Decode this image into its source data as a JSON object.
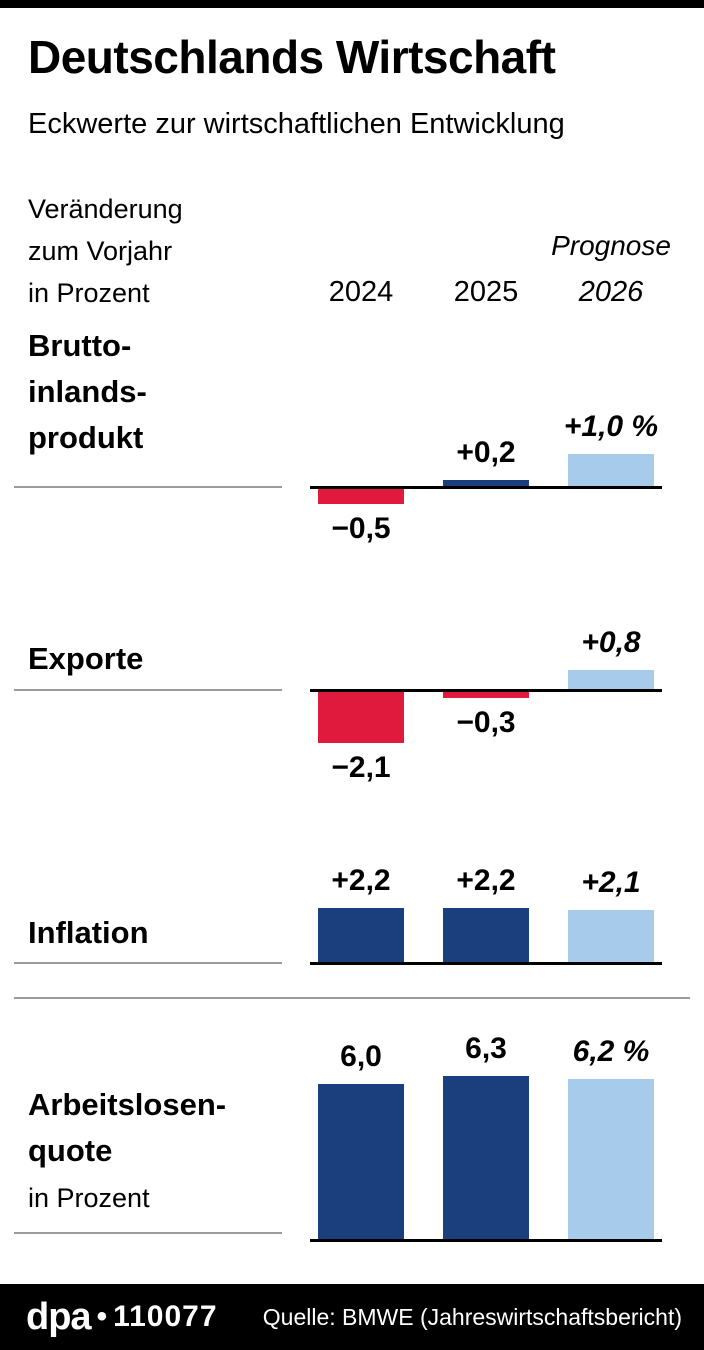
{
  "header": {
    "title": "Deutschlands Wirtschaft",
    "subtitle": "Eckwerte zur wirtschaftlichen Entwicklung"
  },
  "axis_note": {
    "lines": [
      "Veränderung",
      "zum Vorjahr",
      "in Prozent"
    ]
  },
  "columns": {
    "prognose": "Prognose",
    "y2024": "2024",
    "y2025": "2025",
    "y2026": "2026"
  },
  "colors": {
    "negative_red": "#df1a3c",
    "dark_blue": "#1b3e7c",
    "light_blue": "#a7cbea",
    "rule_gray": "#9b9b9b",
    "baseline_black": "#000000"
  },
  "footer": {
    "brand": "dpa",
    "bullet": "•",
    "number": "110077",
    "source": "Quelle: BMWE (Jahreswirtschaftsbericht)"
  },
  "chart_data": [
    {
      "type": "bar",
      "title": "Bruttoinlandsprodukt",
      "label_lines": [
        "Brutto-",
        "inlands-",
        "produkt"
      ],
      "unit": "Veränderung zum Vorjahr in Prozent",
      "categories": [
        "2024",
        "2025",
        "2026"
      ],
      "forecast_category": "2026",
      "values": [
        -0.5,
        0.2,
        1.0
      ],
      "value_labels": [
        "−0,5",
        "+0,2",
        "+1,0 %"
      ],
      "bar_colors": [
        "#df1a3c",
        "#1b3e7c",
        "#a7cbea"
      ],
      "ylim": [
        -0.7,
        1.2
      ]
    },
    {
      "type": "bar",
      "title": "Exporte",
      "label_lines": [
        "Exporte"
      ],
      "unit": "Veränderung zum Vorjahr in Prozent",
      "categories": [
        "2024",
        "2025",
        "2026"
      ],
      "forecast_category": "2026",
      "values": [
        -2.1,
        -0.3,
        0.8
      ],
      "value_labels": [
        "−2,1",
        "−0,3",
        "+0,8"
      ],
      "bar_colors": [
        "#df1a3c",
        "#df1a3c",
        "#a7cbea"
      ],
      "ylim": [
        -2.5,
        1.2
      ]
    },
    {
      "type": "bar",
      "title": "Inflation",
      "label_lines": [
        "Inflation"
      ],
      "unit": "Veränderung zum Vorjahr in Prozent",
      "categories": [
        "2024",
        "2025",
        "2026"
      ],
      "forecast_category": "2026",
      "values": [
        2.2,
        2.2,
        2.1
      ],
      "value_labels": [
        "+2,2",
        "+2,2",
        "+2,1"
      ],
      "bar_colors": [
        "#1b3e7c",
        "#1b3e7c",
        "#a7cbea"
      ],
      "ylim": [
        0,
        2.5
      ]
    },
    {
      "type": "bar",
      "title": "Arbeitslosenquote",
      "label_lines": [
        "Arbeitslosen-",
        "quote"
      ],
      "sublabel": "in Prozent",
      "unit": "in Prozent",
      "categories": [
        "2024",
        "2025",
        "2026"
      ],
      "forecast_category": "2026",
      "values": [
        6.0,
        6.3,
        6.2
      ],
      "value_labels": [
        "6,0",
        "6,3",
        "6,2 %"
      ],
      "bar_colors": [
        "#1b3e7c",
        "#1b3e7c",
        "#a7cbea"
      ],
      "ylim": [
        0,
        7
      ]
    }
  ]
}
